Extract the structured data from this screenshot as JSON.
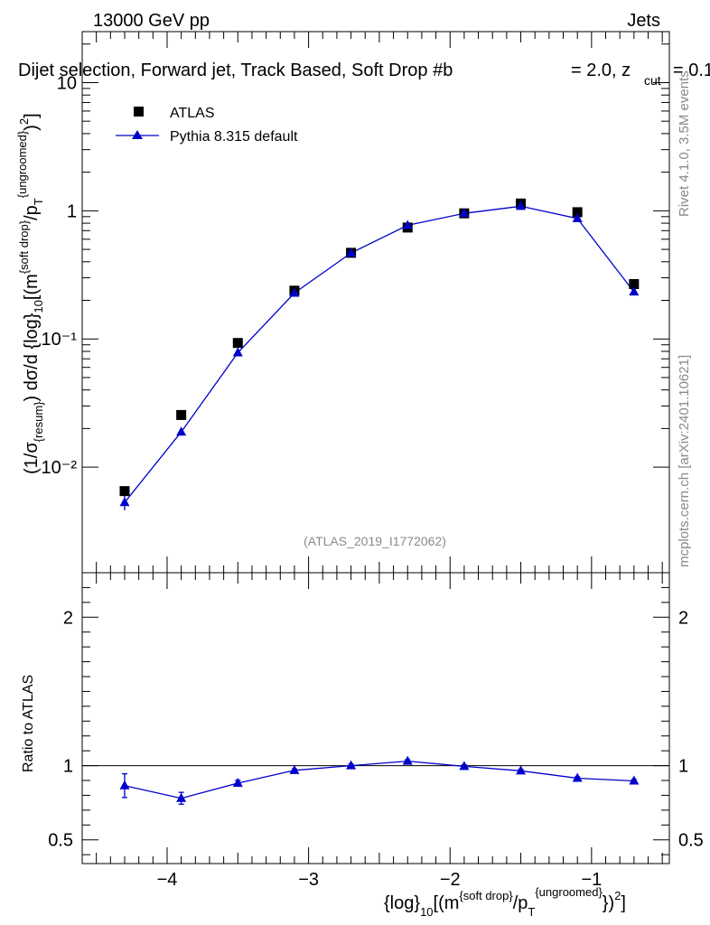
{
  "header": {
    "left": "13000 GeV pp",
    "right": "Jets",
    "title": "Dijet selection, Forward jet, Track Based, Soft Drop #b",
    "title_beta": "= 2.0, z",
    "title_cut_sub": "cut",
    "title_tail": "= 0.1"
  },
  "side": {
    "rivet": "Rivet 4.1.0,  3.5M events",
    "mcplots": "mcplots.cern.ch [arXiv:2401.10621]"
  },
  "watermark": "(ATLAS_2019_I1772062)",
  "legend": {
    "atlas": "ATLAS",
    "pythia": "Pythia 8.315 default"
  },
  "ylabel_main": {
    "a": "(1/σ",
    "a_sub": "{resum}",
    "b": ") dσ/d {log}",
    "b_sub": "10",
    "c": "[(m",
    "c_sup": "{soft drop}",
    "d": "/p",
    "d_sub": "T",
    "d_sup": "{ungroomed}",
    "e": ")",
    "e_sup": "2",
    "f": "]"
  },
  "ylabel_ratio": "Ratio to ATLAS",
  "xlabel": {
    "a": "{log}",
    "a_sub": "10",
    "b": "[(m",
    "b_sup": "{soft drop}",
    "c": "/p",
    "c_sub": "T",
    "c_sup": "{ungroomed}",
    "d": "})",
    "d_sup": "2",
    "e": "]"
  },
  "colors": {
    "data": "#000000",
    "mc": "#0000cc"
  },
  "chart_data": [
    {
      "type": "scatter",
      "panel": "main",
      "yscale": "log",
      "xlim": [
        -4.6,
        -0.45
      ],
      "ylim": [
        0.0015,
        25
      ],
      "ytick_labels": [
        "10⁻²",
        "10⁻¹",
        "1",
        "10"
      ],
      "yticks": [
        0.01,
        0.1,
        1,
        10
      ],
      "series": [
        {
          "name": "ATLAS",
          "marker": "square",
          "x": [
            -4.3,
            -3.9,
            -3.5,
            -3.1,
            -2.7,
            -2.3,
            -1.9,
            -1.5,
            -1.1,
            -0.7
          ],
          "y": [
            0.0065,
            0.0255,
            0.093,
            0.238,
            0.47,
            0.74,
            0.955,
            1.14,
            0.975,
            0.268
          ]
        },
        {
          "name": "Pythia 8.315 default",
          "marker": "triangle",
          "x": [
            -4.3,
            -3.9,
            -3.5,
            -3.1,
            -2.7,
            -2.3,
            -1.9,
            -1.5,
            -1.1,
            -0.7
          ],
          "y": [
            0.0053,
            0.0188,
            0.078,
            0.228,
            0.468,
            0.77,
            0.955,
            1.085,
            0.87,
            0.233
          ],
          "err_low": [
            0.0007,
            0.0012,
            0.004,
            0.005,
            0.008,
            0.01,
            0.012,
            0.012,
            0.012,
            0.005
          ],
          "err_high": [
            0.0007,
            0.0012,
            0.004,
            0.005,
            0.008,
            0.01,
            0.012,
            0.012,
            0.012,
            0.005
          ]
        }
      ]
    },
    {
      "type": "line",
      "panel": "ratio",
      "xlim": [
        -4.6,
        -0.45
      ],
      "ylim": [
        0.34,
        2.3
      ],
      "yticks": [
        0.5,
        1,
        2
      ],
      "ytick_labels": [
        "0.5",
        "1",
        "2"
      ],
      "xticks": [
        -4,
        -3,
        -2,
        -1
      ],
      "xtick_labels": [
        "−4",
        "−3",
        "−2",
        "−1"
      ],
      "reference": 1,
      "series": [
        {
          "name": "Pythia 8.315 default / ATLAS",
          "x": [
            -4.3,
            -3.9,
            -3.5,
            -3.1,
            -2.7,
            -2.3,
            -1.9,
            -1.5,
            -1.1,
            -0.7
          ],
          "y": [
            0.865,
            0.78,
            0.882,
            0.968,
            1.0,
            1.03,
            0.995,
            0.965,
            0.915,
            0.897
          ],
          "err_low": [
            0.08,
            0.04,
            0.02,
            0.01,
            0.01,
            0.01,
            0.01,
            0.01,
            0.01,
            0.01
          ],
          "err_high": [
            0.08,
            0.04,
            0.02,
            0.01,
            0.01,
            0.01,
            0.01,
            0.01,
            0.01,
            0.01
          ]
        }
      ]
    }
  ]
}
